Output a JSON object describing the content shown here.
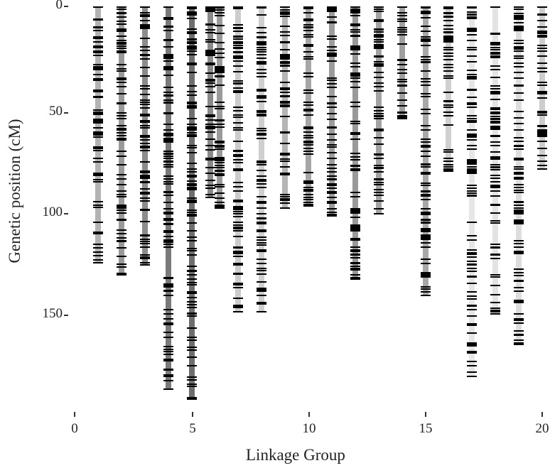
{
  "chart_data": {
    "type": "bar",
    "subtype": "linkage-map",
    "title": "",
    "xlabel": "Linkage Group",
    "ylabel": "Genetic position (cM)",
    "x_ticks": [
      0,
      5,
      10,
      15,
      20
    ],
    "y_ticks": [
      0,
      50,
      100,
      150
    ],
    "ylim": [
      0,
      195
    ],
    "y_inverted": true,
    "grid": false,
    "legend": null,
    "groups": [
      {
        "x": 1,
        "length": 126,
        "shade": "#b3b3b3"
      },
      {
        "x": 2,
        "length": 132,
        "shade": "#9a9a9a"
      },
      {
        "x": 3,
        "length": 127,
        "shade": "#8c8c8c"
      },
      {
        "x": 4,
        "length": 188,
        "shade": "#7a7a7a"
      },
      {
        "x": 5,
        "length": 193,
        "shade": "#6e6e6e"
      },
      {
        "x": 5.8,
        "length": 94,
        "shade": "#8a8a8a"
      },
      {
        "x": 6.2,
        "length": 99,
        "shade": "#9a9a9a"
      },
      {
        "x": 7,
        "length": 150,
        "shade": "#cccccc"
      },
      {
        "x": 8,
        "length": 150,
        "shade": "#cfcfcf"
      },
      {
        "x": 9,
        "length": 99,
        "shade": "#b5b5b5"
      },
      {
        "x": 10,
        "length": 98,
        "shade": "#a6a6a6"
      },
      {
        "x": 11,
        "length": 103,
        "shade": "#9c9c9c"
      },
      {
        "x": 12,
        "length": 134,
        "shade": "#999999"
      },
      {
        "x": 13,
        "length": 102,
        "shade": "#a3a3a3"
      },
      {
        "x": 14,
        "length": 55,
        "shade": "#9f9f9f"
      },
      {
        "x": 15,
        "length": 142,
        "shade": "#a8a8a8"
      },
      {
        "x": 16,
        "length": 81,
        "shade": "#d0d0d0"
      },
      {
        "x": 17,
        "length": 182,
        "shade": "#e6e6e6"
      },
      {
        "x": 18,
        "length": 151,
        "shade": "#e3e3e3"
      },
      {
        "x": 19,
        "length": 166,
        "shade": "#dddddd"
      },
      {
        "x": 20,
        "length": 80,
        "shade": "#cdcdcd"
      }
    ],
    "marker_color": "#000000"
  },
  "axes": {
    "x_title": "Linkage Group",
    "y_title": "Genetic position (cM)",
    "x_tick_labels": [
      "0",
      "5",
      "10",
      "15",
      "20"
    ],
    "y_tick_labels": [
      "0",
      "50",
      "100",
      "150"
    ]
  }
}
